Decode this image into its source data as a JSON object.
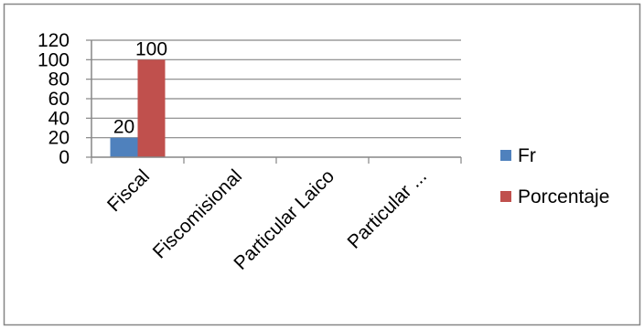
{
  "chart_data": {
    "type": "bar",
    "categories": [
      "Fiscal",
      "Fiscomisional",
      "Particular Laico",
      "Particular ..."
    ],
    "series": [
      {
        "name": "Fr",
        "values": [
          20,
          null,
          null,
          null
        ],
        "color": "#4f81bd"
      },
      {
        "name": "Porcentaje",
        "values": [
          100,
          null,
          null,
          null
        ],
        "color": "#c0504d"
      }
    ],
    "data_labels": [
      [
        "20",
        "",
        "",
        ""
      ],
      [
        "100",
        "",
        "",
        ""
      ]
    ],
    "ylim": [
      0,
      120
    ],
    "yticks": [
      0,
      20,
      40,
      60,
      80,
      100,
      120
    ],
    "grid": true,
    "legend_position": "right",
    "title": "",
    "xlabel": "",
    "ylabel": ""
  }
}
